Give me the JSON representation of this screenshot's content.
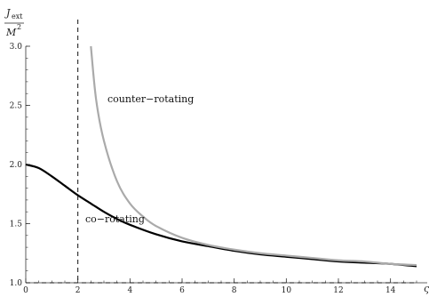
{
  "chart_data": {
    "type": "line",
    "ylabel_numerator": "J",
    "ylabel_numerator_sub": "ext",
    "ylabel_denominator": "M",
    "ylabel_denominator_sup": "2",
    "xlabel": "ς",
    "xlim": [
      0,
      15
    ],
    "ylim": [
      1.0,
      3.0
    ],
    "x_ticks": [
      0,
      2,
      4,
      6,
      8,
      10,
      12,
      14
    ],
    "y_ticks": [
      1.0,
      1.5,
      2.0,
      2.5,
      3.0
    ],
    "y_tick_labels": [
      "1.0",
      "1.5",
      "2.0",
      "2.5",
      "3.0"
    ],
    "x_tick_labels": [
      "0",
      "2",
      "4",
      "6",
      "8",
      "10",
      "12",
      "14"
    ],
    "vertical_reference_line_x": 2,
    "horizontal_reference_line_y": 1.0,
    "series": [
      {
        "name": "co−rotating",
        "color": "#000000",
        "x": [
          0,
          0.5,
          1,
          1.5,
          2,
          2.5,
          3,
          3.5,
          4,
          5,
          6,
          7,
          8,
          9,
          10,
          11,
          12,
          13,
          14,
          15
        ],
        "y": [
          2.0,
          1.97,
          1.9,
          1.82,
          1.74,
          1.67,
          1.6,
          1.54,
          1.49,
          1.41,
          1.35,
          1.31,
          1.27,
          1.24,
          1.22,
          1.2,
          1.18,
          1.17,
          1.16,
          1.14
        ]
      },
      {
        "name": "counter−rotating",
        "color": "#aaaaaa",
        "x": [
          2.5,
          2.7,
          3,
          3.5,
          4,
          4.5,
          5,
          6,
          7,
          8,
          9,
          10,
          11,
          12,
          13,
          14,
          15
        ],
        "y": [
          3.0,
          2.55,
          2.2,
          1.86,
          1.67,
          1.56,
          1.48,
          1.38,
          1.32,
          1.28,
          1.25,
          1.23,
          1.21,
          1.19,
          1.18,
          1.16,
          1.15
        ]
      }
    ]
  }
}
